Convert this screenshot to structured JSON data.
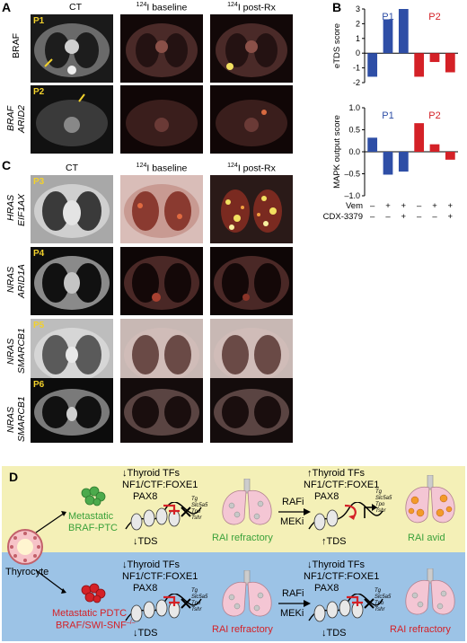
{
  "panel_labels": {
    "a": "A",
    "b": "B",
    "c": "C",
    "d": "D"
  },
  "panel_a": {
    "columns": [
      "CT",
      "124I baseline",
      "124I post-Rx"
    ],
    "column_sup": "124",
    "column_suffixes": [
      "I baseline",
      "I post-Rx"
    ],
    "rows": [
      {
        "patient": "P1",
        "genes": [
          "BRAF"
        ]
      },
      {
        "patient": "P2",
        "genes": [
          "BRAF",
          "ARID2"
        ]
      }
    ]
  },
  "panel_c": {
    "columns": [
      "CT",
      "124I baseline",
      "124I post-Rx"
    ],
    "rows": [
      {
        "patient": "P3",
        "genes": [
          "HRAS",
          "EIF1AX"
        ]
      },
      {
        "patient": "P4",
        "genes": [
          "NRAS",
          "ARID1A"
        ]
      },
      {
        "patient": "P5",
        "genes": [
          "NRAS",
          "SMARCB1"
        ]
      },
      {
        "patient": "P6",
        "genes": [
          "NRAS",
          "SMARCB1"
        ]
      }
    ]
  },
  "chart_data": [
    {
      "type": "bar",
      "ylabel": "eTDS score",
      "ylim": [
        -2,
        3
      ],
      "yticks": [
        -2,
        -1,
        0,
        1,
        2,
        3
      ],
      "groups": [
        "P1",
        "P2"
      ],
      "group_colors": [
        "#2e4ea6",
        "#d42127"
      ],
      "categories": [
        "-/-",
        "+/-",
        "+/+",
        "-/-",
        "+/-",
        "+/+"
      ],
      "values": [
        -1.6,
        2.3,
        3.0,
        -1.6,
        -0.6,
        -1.3
      ],
      "bar_colors": [
        "#2e4ea6",
        "#2e4ea6",
        "#2e4ea6",
        "#d42127",
        "#d42127",
        "#d42127"
      ]
    },
    {
      "type": "bar",
      "ylabel": "MAPK output score",
      "ylim": [
        -1.0,
        1.0
      ],
      "yticks": [
        -1.0,
        -0.5,
        0.0,
        0.5,
        1.0
      ],
      "ytick_labels": [
        "–1.0",
        "–0.5",
        "0.0",
        "0.5",
        "1.0"
      ],
      "groups": [
        "P1",
        "P2"
      ],
      "group_colors": [
        "#2e4ea6",
        "#d42127"
      ],
      "categories": [
        "-/-",
        "+/-",
        "+/+",
        "-/-",
        "+/-",
        "+/+"
      ],
      "values": [
        0.32,
        -0.52,
        -0.45,
        0.65,
        0.17,
        -0.18
      ],
      "bar_colors": [
        "#2e4ea6",
        "#2e4ea6",
        "#2e4ea6",
        "#d42127",
        "#d42127",
        "#d42127"
      ],
      "treatments": [
        {
          "name": "Vem",
          "signs": [
            "–",
            "+",
            "+",
            "–",
            "+",
            "+"
          ]
        },
        {
          "name": "CDX-3379",
          "signs": [
            "–",
            "–",
            "+",
            "–",
            "–",
            "+"
          ]
        }
      ]
    }
  ],
  "panel_d": {
    "thyrocyte": "Thyrocyte",
    "top": {
      "tumor_label": "Metastatic BRAF-PTC",
      "tumor_line1": "Metastatic",
      "tumor_line2": "BRAF-PTC",
      "left_tfs": "Thyroid TFs",
      "left_factors": "NF1/CTF:FOXE1",
      "left_pax": "PAX8",
      "left_tds": "TDS",
      "left_outcome": "RAI refractory",
      "drug1": "RAFi",
      "drug2": "MEKi",
      "right_tfs": "Thyroid TFs",
      "right_factors": "NF1/CTF:FOXE1",
      "right_pax": "PAX8",
      "right_tds": "TDS",
      "right_outcome": "RAI avid",
      "genes": [
        "Tg",
        "Slc5a5",
        "Tpo",
        "Tshr"
      ]
    },
    "bottom": {
      "tumor_line1": "Metastatic PDTC",
      "tumor_line2": "BRAF/SWI-SNF",
      "tumor_sup": "–/–",
      "left_tfs": "Thyroid TFs",
      "left_factors": "NF1/CTF:FOXE1",
      "left_pax": "PAX8",
      "left_tds": "TDS",
      "left_outcome": "RAI refractory",
      "drug1": "RAFi",
      "drug2": "MEKi",
      "right_tfs": "Thyroid TFs",
      "right_factors": "NF1/CTF:FOXE1",
      "right_pax": "PAX8",
      "right_tds": "TDS",
      "right_outcome": "RAI refractory",
      "genes": [
        "Tg",
        "Slc5a5",
        "Tpo",
        "Tshr"
      ]
    },
    "colors": {
      "green": "#3aa13a",
      "red": "#d42127",
      "lung": "#f4c6d4"
    }
  }
}
